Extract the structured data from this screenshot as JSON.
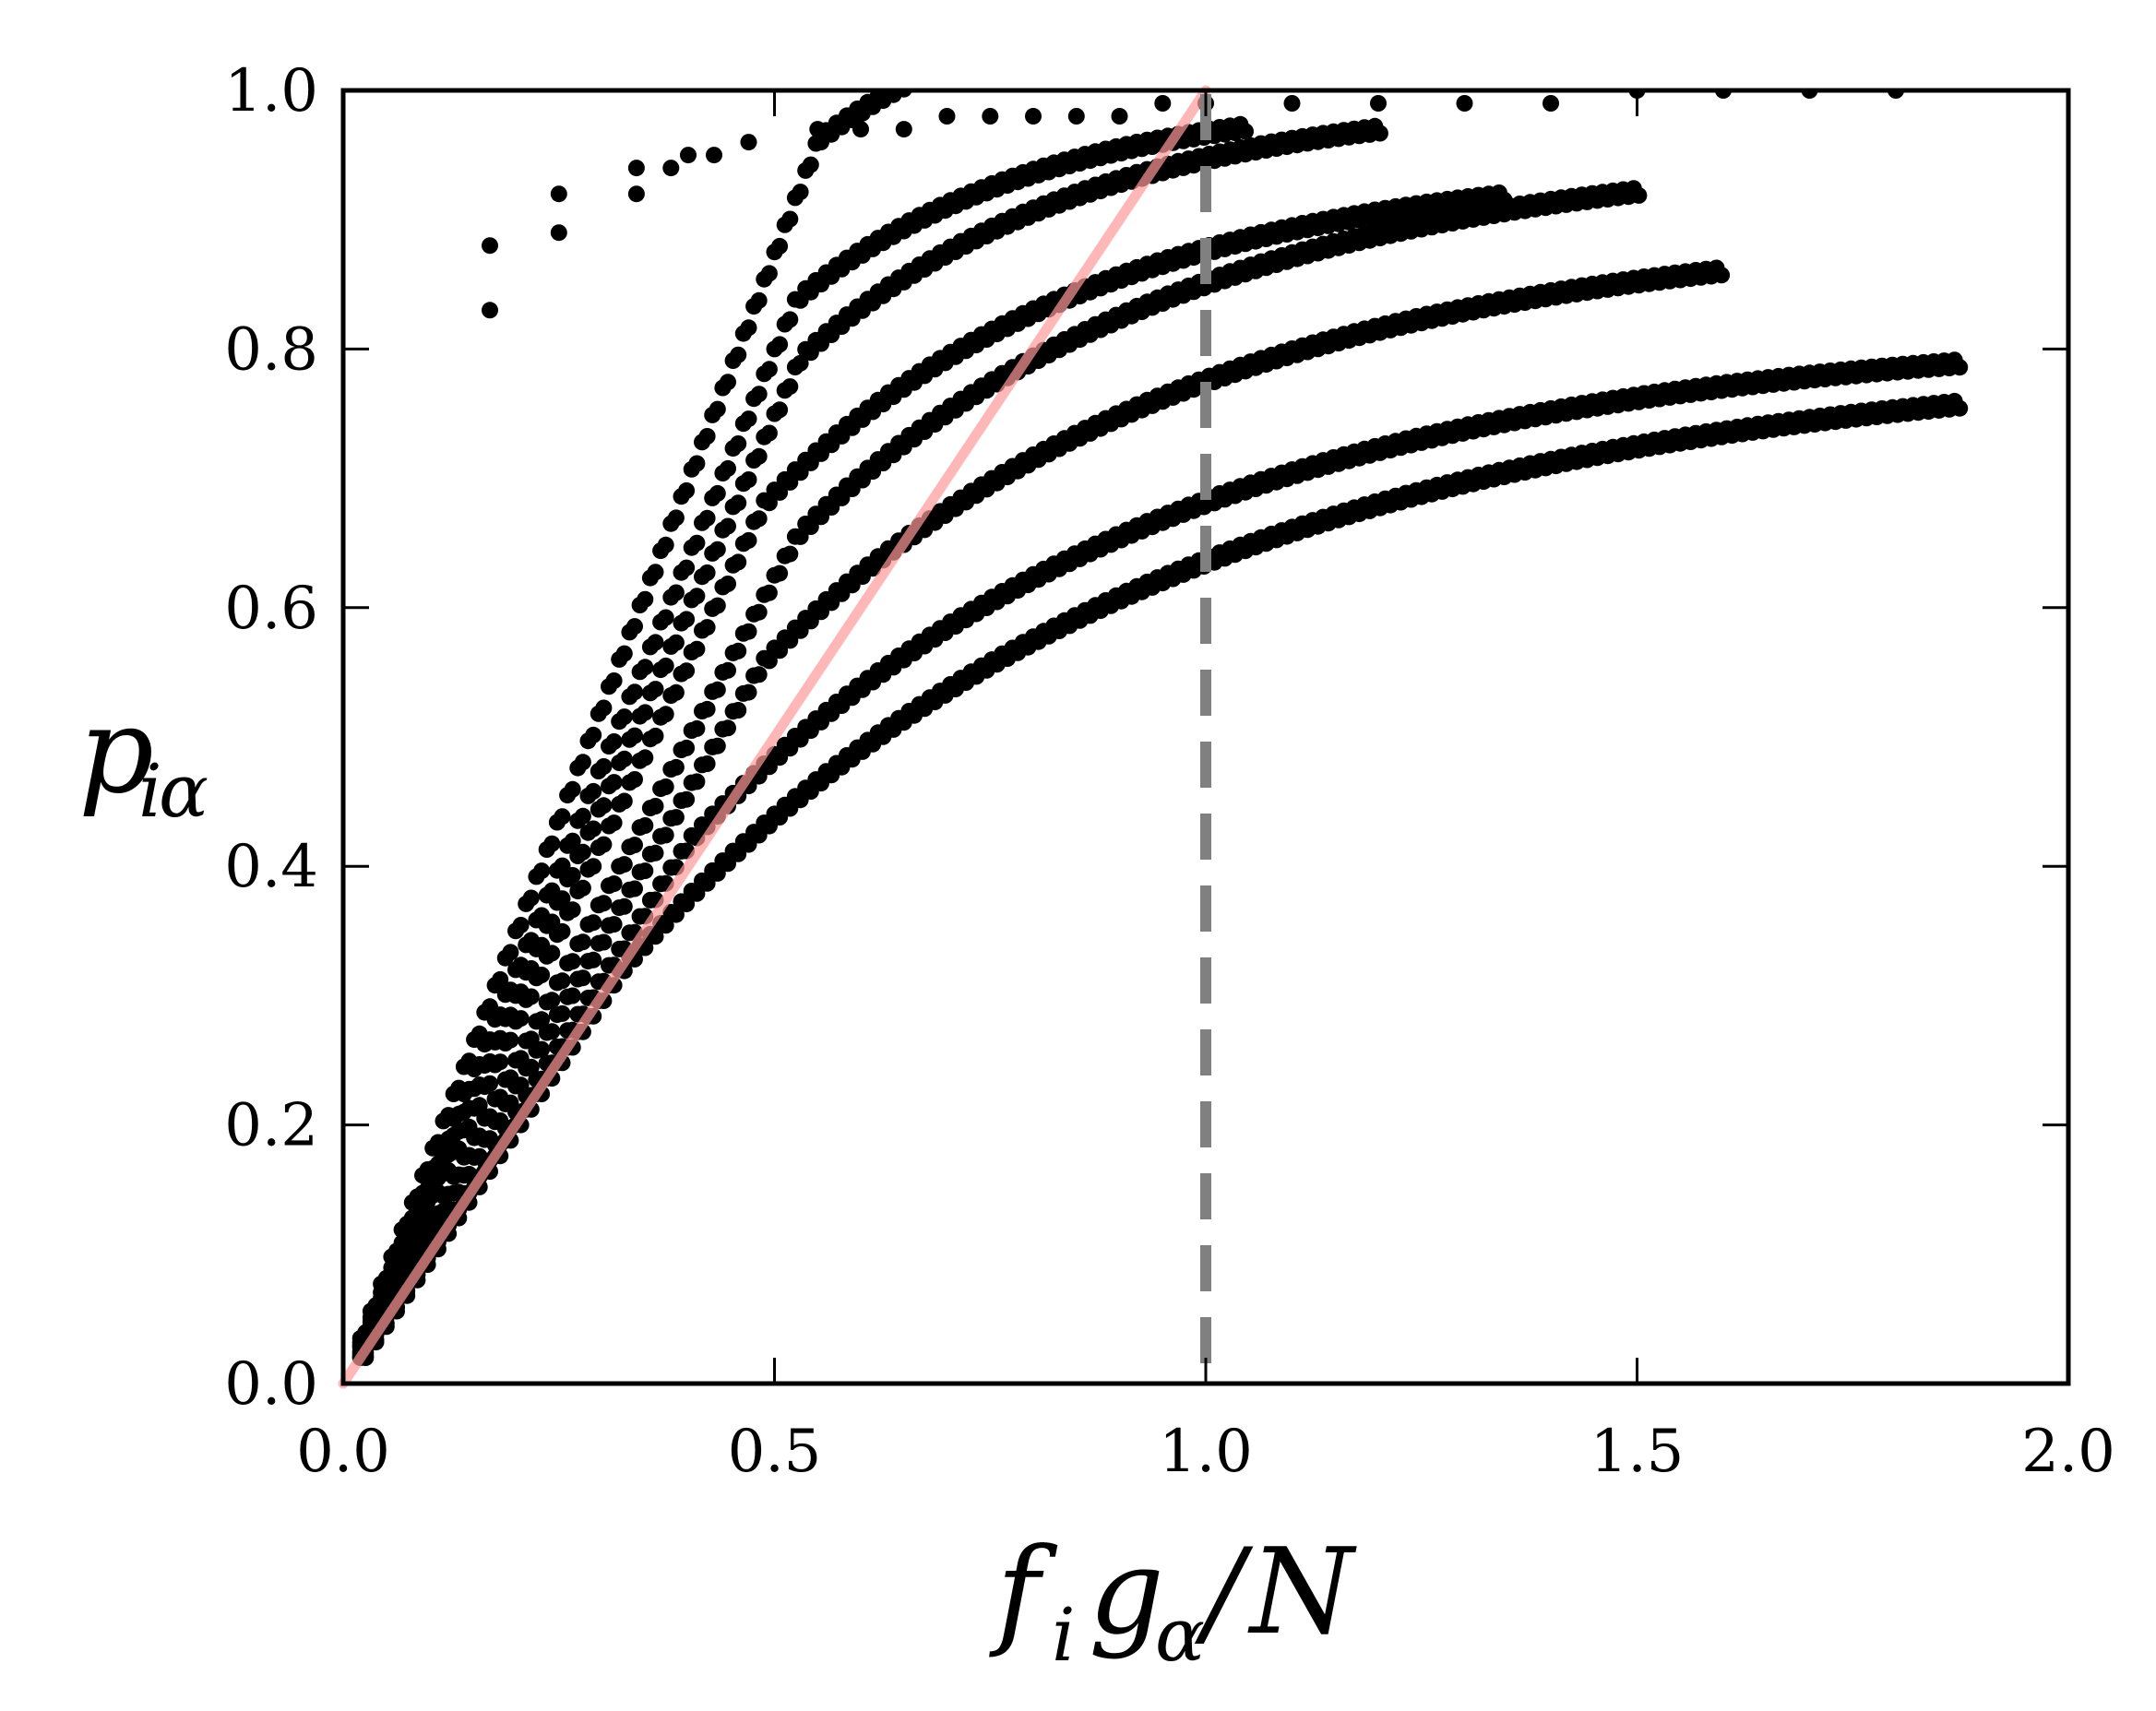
{
  "chart_data": {
    "type": "scatter",
    "xlabel": "f_i g_α / N",
    "ylabel": "p_iα",
    "xlim": [
      0.0,
      2.0
    ],
    "ylim": [
      0.0,
      1.0
    ],
    "xticks": [
      "0.0",
      "0.5",
      "1.0",
      "1.5",
      "2.0"
    ],
    "yticks": [
      "0.0",
      "0.2",
      "0.4",
      "0.6",
      "0.8",
      "1.0"
    ],
    "grid": false,
    "legend": "none",
    "colors": {
      "points": "#000000",
      "line": "#ff9999",
      "vline": "#808080"
    },
    "reference_line": {
      "x": [
        0.0,
        1.0
      ],
      "y": [
        0.0,
        1.0
      ],
      "style": "solid"
    },
    "vertical_line": {
      "x": 1.0,
      "style": "dashed"
    },
    "series": [
      {
        "points": [
          [
            0.17,
            0.83
          ],
          [
            0.17,
            0.88
          ],
          [
            0.25,
            0.89
          ],
          [
            0.25,
            0.92
          ],
          [
            0.34,
            0.92
          ],
          [
            0.34,
            0.94
          ],
          [
            0.38,
            0.94
          ],
          [
            0.4,
            0.95
          ],
          [
            0.43,
            0.95
          ],
          [
            0.47,
            0.96
          ],
          [
            0.55,
            0.97
          ],
          [
            0.6,
            0.97
          ],
          [
            0.65,
            0.97
          ],
          [
            0.7,
            0.98
          ],
          [
            0.75,
            0.98
          ],
          [
            0.8,
            0.98
          ],
          [
            0.85,
            0.98
          ],
          [
            0.9,
            0.98
          ],
          [
            0.95,
            0.99
          ],
          [
            1.0,
            0.99
          ],
          [
            1.1,
            0.99
          ],
          [
            1.2,
            0.99
          ],
          [
            1.3,
            0.99
          ],
          [
            1.4,
            0.99
          ],
          [
            1.5,
            1.0
          ],
          [
            1.6,
            1.0
          ],
          [
            1.7,
            1.0
          ],
          [
            1.8,
            1.0
          ]
        ]
      },
      {
        "bands": [
          {
            "a": 1.75,
            "b": 1.0,
            "c": 1.1,
            "k": 3.8,
            "x_start": 0.02,
            "x_end": 1.0
          },
          {
            "a": 1.6,
            "b": 1.0,
            "c": 1.0,
            "k": 3.5,
            "x_start": 0.02,
            "x_end": 1.05
          },
          {
            "a": 1.5,
            "b": 1.0,
            "c": 1.0,
            "k": 3.0,
            "x_start": 0.02,
            "x_end": 1.2
          },
          {
            "a": 1.4,
            "b": 1.0,
            "c": 0.95,
            "k": 2.6,
            "x_start": 0.02,
            "x_end": 1.35
          },
          {
            "a": 1.25,
            "b": 1.0,
            "c": 0.96,
            "k": 2.2,
            "x_start": 0.02,
            "x_end": 1.5
          },
          {
            "a": 1.15,
            "b": 0.3,
            "c": 0.9,
            "k": 2.0,
            "x_start": 0.02,
            "x_end": 1.6
          },
          {
            "a": 1.05,
            "b": 0.3,
            "c": 0.82,
            "k": 1.8,
            "x_start": 0.02,
            "x_end": 1.88
          },
          {
            "a": 1.0,
            "b": 0.4,
            "c": 0.8,
            "k": 1.6,
            "x_start": 0.02,
            "x_end": 1.88
          }
        ]
      }
    ]
  }
}
